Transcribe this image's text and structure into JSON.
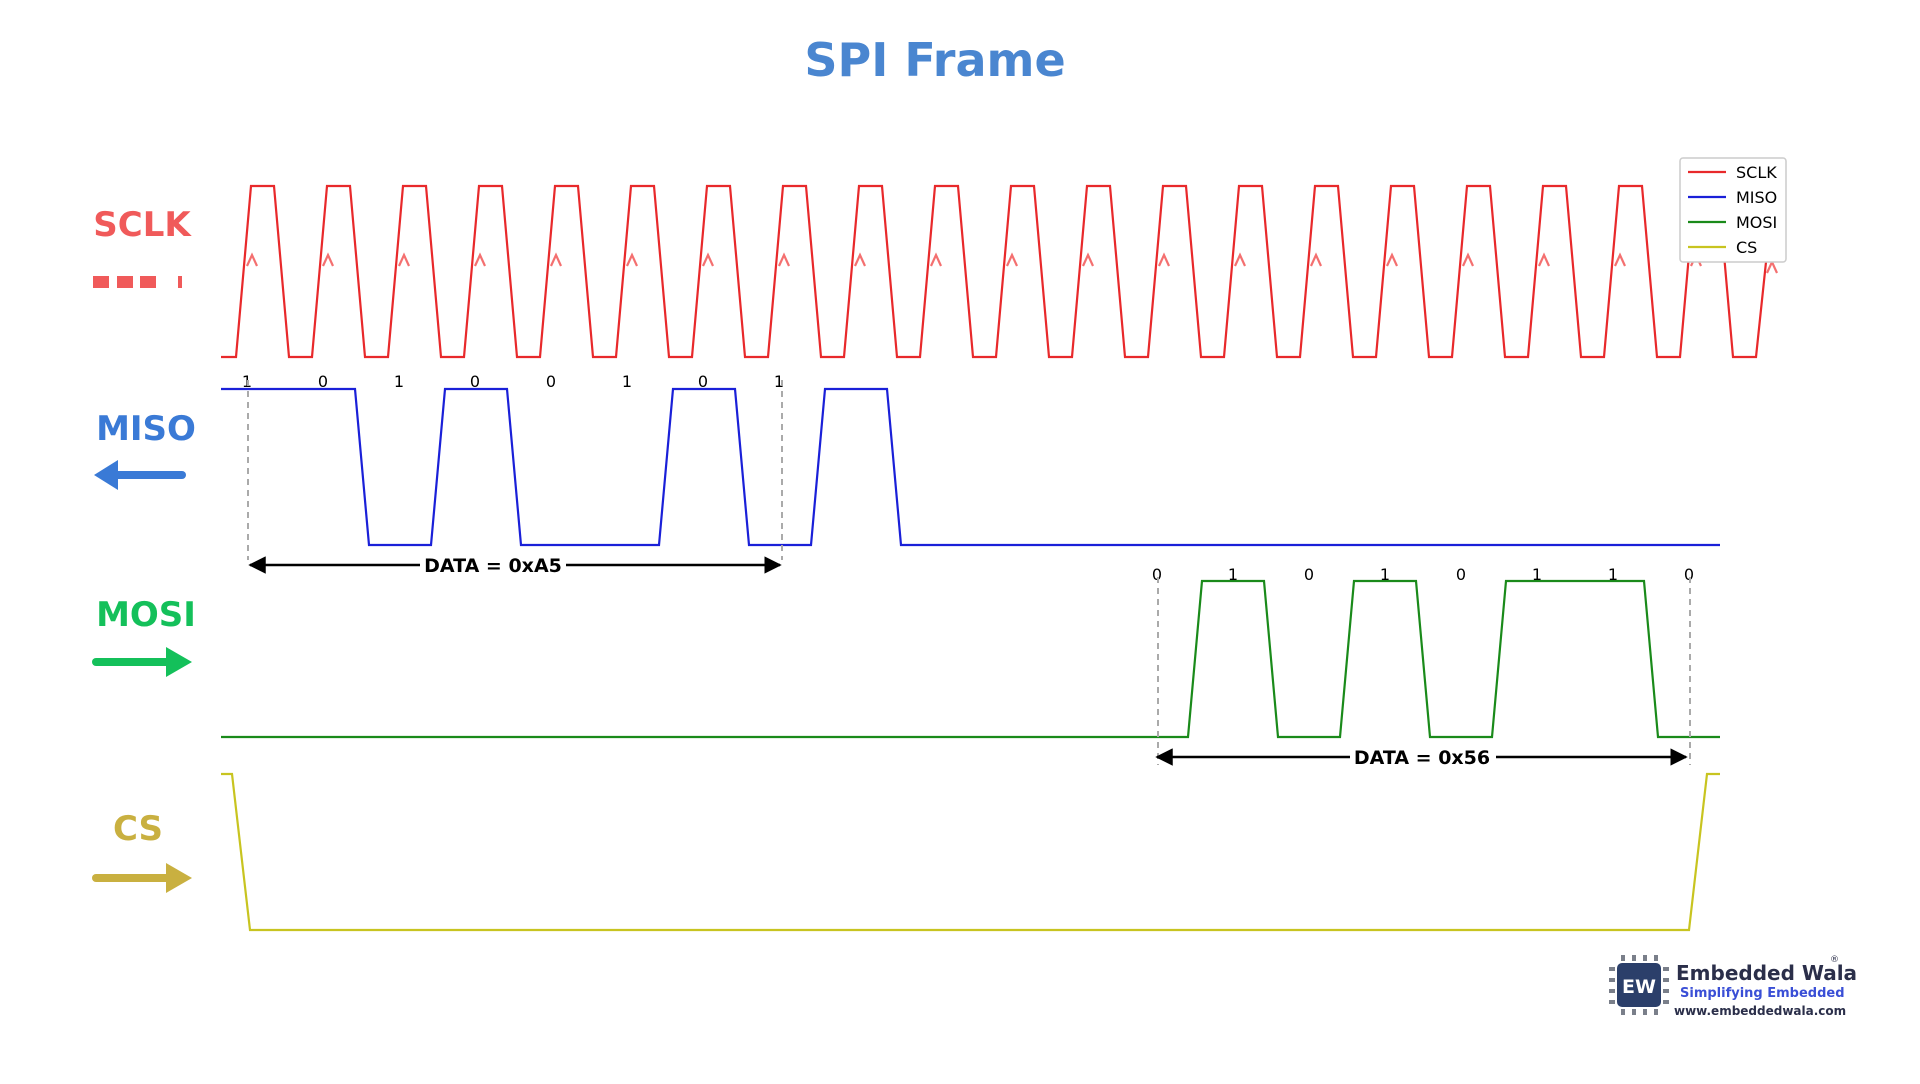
{
  "title": "SPI Frame",
  "colors": {
    "title": "#4a86d0",
    "sclk": "#e8292b",
    "sclk_label": "#f05a5a",
    "miso": "#1a20d8",
    "miso_label": "#3a7ad6",
    "mosi": "#1a8a1a",
    "mosi_label": "#14c05a",
    "cs": "#c8c420",
    "cs_label": "#c9b040",
    "edge_arrow": "#f47070",
    "guide": "#aaaaaa"
  },
  "signals": {
    "sclk": {
      "label": "SCLK",
      "icon": "dashed-line-icon"
    },
    "miso": {
      "label": "MISO",
      "icon": "arrow-left-icon"
    },
    "mosi": {
      "label": "MOSI",
      "icon": "arrow-right-icon"
    },
    "cs": {
      "label": "CS",
      "icon": "arrow-right-icon"
    }
  },
  "legend": {
    "items": [
      {
        "label": "SCLK",
        "color": "#e8292b"
      },
      {
        "label": "MISO",
        "color": "#1a20d8"
      },
      {
        "label": "MOSI",
        "color": "#1a8a1a"
      },
      {
        "label": "CS",
        "color": "#c8c420"
      }
    ]
  },
  "miso_frame": {
    "bits": [
      "1",
      "0",
      "1",
      "0",
      "0",
      "1",
      "0",
      "1"
    ],
    "data_label": "DATA  = 0xA5"
  },
  "mosi_frame": {
    "bits": [
      "0",
      "1",
      "0",
      "1",
      "0",
      "1",
      "1",
      "0"
    ],
    "data_label": "DATA  = 0x56"
  },
  "clock": {
    "cycles": 20
  },
  "logo": {
    "badge": "EW",
    "name": "Embedded Wala",
    "registered": "®",
    "tagline": "Simplifying Embedded",
    "url": "www.embeddedwala.com"
  }
}
